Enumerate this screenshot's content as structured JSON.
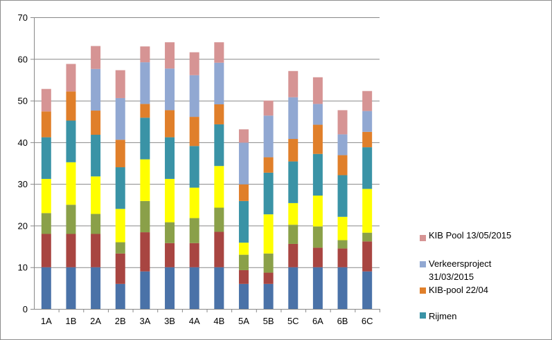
{
  "chart_data": {
    "type": "bar",
    "stacked": true,
    "title": "",
    "xlabel": "",
    "ylabel": "",
    "ylim": [
      0,
      70
    ],
    "yticks": [
      0,
      10,
      20,
      30,
      40,
      50,
      60,
      70
    ],
    "grid": true,
    "legend_position": "right",
    "categories": [
      "1A",
      "1B",
      "2A",
      "2B",
      "3A",
      "3B",
      "4A",
      "4B",
      "5A",
      "5B",
      "5C",
      "6A",
      "6B",
      "6C"
    ],
    "series": [
      {
        "name": "",
        "color": "#4a72a8",
        "values": [
          10,
          10,
          10,
          6,
          9,
          10,
          10,
          10,
          6,
          6,
          10,
          10,
          10,
          9
        ]
      },
      {
        "name": "",
        "color": "#a84541",
        "values": [
          8,
          8,
          8,
          7.3,
          9.4,
          5.8,
          5.8,
          8.5,
          3.3,
          2.7,
          5.6,
          4.7,
          4.5,
          7.2
        ]
      },
      {
        "name": "",
        "color": "#8aa049",
        "values": [
          5,
          7,
          4.8,
          2.7,
          7.5,
          5,
          6,
          5.8,
          3.7,
          4.6,
          4.6,
          5.1,
          2,
          2.1
        ]
      },
      {
        "name": "",
        "color": "#ffff00",
        "values": [
          8.2,
          10.2,
          9,
          8,
          10,
          10.4,
          7.3,
          10,
          2.9,
          9.4,
          5.2,
          7.4,
          5.6,
          10.5
        ]
      },
      {
        "name": "Rijmen",
        "color": "#3a93a6",
        "values": [
          10,
          10,
          10,
          10,
          10,
          10,
          10,
          10,
          10,
          10,
          10,
          10,
          10,
          10
        ]
      },
      {
        "name": "KIB-pool 22/04",
        "color": "#e07f2a",
        "values": [
          6.2,
          7,
          5.8,
          6.6,
          3.3,
          6.5,
          7,
          4.8,
          4,
          3.7,
          5.4,
          7,
          4.8,
          3.7
        ]
      },
      {
        "name": "Verkeersproject 31/03/2015",
        "color": "#91a8d2",
        "values": [
          0,
          0,
          10,
          10,
          10,
          10,
          10,
          10,
          10,
          10,
          10,
          5,
          5,
          5
        ]
      },
      {
        "name": "KIB Pool 13/05/2015",
        "color": "#d69494",
        "values": [
          5.4,
          6.6,
          5.5,
          6.7,
          3.8,
          6.3,
          5.5,
          4.9,
          3.2,
          3.6,
          6.3,
          6.4,
          5.8,
          4.8
        ]
      }
    ],
    "legend": [
      "KIB Pool 13/05/2015",
      "Verkeersproject 31/03/2015",
      "KIB-pool 22/04",
      "Rijmen"
    ]
  },
  "colors": {
    "grid": "#878787",
    "axis": "#878787",
    "border": "#8c8c8c"
  }
}
